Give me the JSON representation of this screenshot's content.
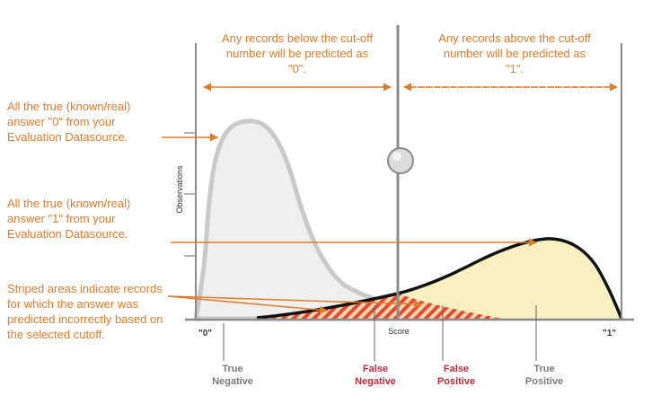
{
  "top_notes": {
    "below": "Any records below the cut-off number will be predicted as \"0\".",
    "above": "Any records above the cut-off number will be predicted as \"1\"."
  },
  "side_notes": {
    "true0": "All the true (known/real) answer \"0\" from your Evaluation Datasource.",
    "true1": "All the true (known/real) answer \"1\" from your Evaluation Datasource.",
    "striped": "Striped areas indicate records for which the answer was predicted incorrectly based on the selected cutoff."
  },
  "axis": {
    "ylabel": "Observations",
    "xlabel": "Score",
    "left_tick": "\"0\"",
    "right_tick": "\"1\""
  },
  "regions": {
    "true_negative": "True Negative",
    "false_negative": "False Negative",
    "false_positive": "False Positive",
    "true_positive": "True Positive"
  },
  "colors": {
    "annotation": "#e07b2a",
    "error_label": "#c8273a",
    "negative_fill": "#efefef",
    "positive_fill": "#f8f0c0"
  }
}
